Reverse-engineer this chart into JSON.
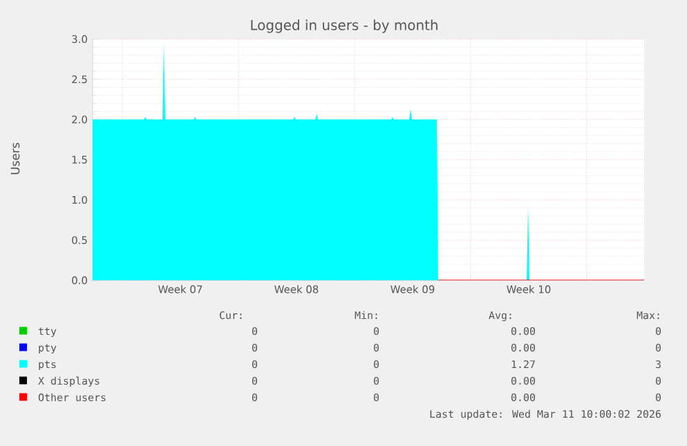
{
  "chart_data": {
    "type": "area",
    "title": "Logged in users - by month",
    "ylabel": "Users",
    "xlim": [
      "2026-02-07T05:00",
      "2026-03-12T11:00"
    ],
    "ylim": [
      0,
      3
    ],
    "xticks": [
      {
        "value": "2026-02-09T00:00",
        "label": null
      },
      {
        "value": "2026-02-12T12:00",
        "label": "Week 07"
      },
      {
        "value": "2026-02-16T00:00",
        "label": null
      },
      {
        "value": "2026-02-19T12:00",
        "label": "Week 08"
      },
      {
        "value": "2026-02-23T00:00",
        "label": null
      },
      {
        "value": "2026-02-26T12:00",
        "label": "Week 09"
      },
      {
        "value": "2026-03-02T00:00",
        "label": null
      },
      {
        "value": "2026-03-05T12:00",
        "label": "Week 10"
      },
      {
        "value": "2026-03-09T00:00",
        "label": null
      }
    ],
    "yticks": [
      {
        "value": 0,
        "label": "0.0"
      },
      {
        "value": 0.5,
        "label": "0.5"
      },
      {
        "value": 1,
        "label": "1.0"
      },
      {
        "value": 1.5,
        "label": "1.5"
      },
      {
        "value": 2,
        "label": "2.0"
      },
      {
        "value": 2.5,
        "label": "2.5"
      },
      {
        "value": 3,
        "label": "3.0"
      }
    ],
    "grid": true,
    "legend": "bottom",
    "series": [
      {
        "name": "pts",
        "color": "#00ffff",
        "x": [
          "2026-02-07T05:00",
          "2026-02-10T07:00",
          "2026-02-10T09:00",
          "2026-02-10T11:00",
          "2026-02-11T10:00",
          "2026-02-11T12:00",
          "2026-02-11T14:00",
          "2026-02-13T07:00",
          "2026-02-13T09:00",
          "2026-02-13T11:00",
          "2026-02-19T07:00",
          "2026-02-19T09:00",
          "2026-02-19T11:00",
          "2026-02-20T15:00",
          "2026-02-20T17:00",
          "2026-02-20T19:00",
          "2026-02-25T05:00",
          "2026-02-25T07:00",
          "2026-02-25T09:00",
          "2026-02-26T07:00",
          "2026-02-26T09:00",
          "2026-02-26T11:00",
          "2026-02-27T23:00",
          "2026-02-28T01:00",
          "2026-03-05T09:00",
          "2026-03-05T11:00",
          "2026-03-05T13:00",
          "2026-03-12T11:00"
        ],
        "values": [
          2,
          2,
          2.03,
          2,
          2,
          2.95,
          2,
          2,
          2.03,
          2,
          2,
          2.03,
          2,
          2,
          2.07,
          2,
          2,
          2.03,
          2,
          2,
          2.13,
          2,
          2,
          0,
          0,
          0.93,
          0,
          0
        ]
      },
      {
        "name": "tty",
        "color": "#00cc00"
      },
      {
        "name": "pty",
        "color": "#0000ff"
      },
      {
        "name": "X displays",
        "color": "#000000"
      },
      {
        "name": "Other users",
        "color": "#ff0000",
        "type": "line",
        "x": [
          "2026-02-28T01:00",
          "2026-03-12T11:00"
        ],
        "values": [
          0,
          0
        ]
      }
    ],
    "annotations": [
      "Cur:",
      "Min:",
      "Avg:",
      "Max:",
      "0",
      "0",
      "0.00",
      "0",
      "0",
      "0",
      "0.00",
      "0",
      "0",
      "0",
      "1.27",
      "3",
      "0",
      "0",
      "0.00",
      "0",
      "0",
      "0",
      "0.00",
      "0",
      "Last update: Wed Mar 11 10:00:02 2026"
    ]
  }
}
